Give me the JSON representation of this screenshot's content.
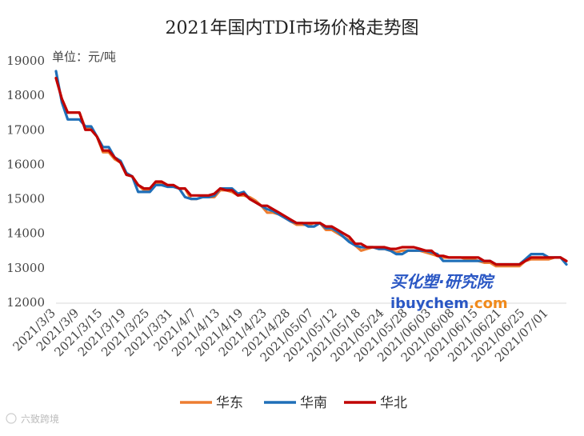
{
  "chart_data": {
    "type": "line",
    "title": "2021年国内TDI市场价格走势图",
    "unit_label": "单位：元/吨",
    "xlabel": "",
    "ylabel": "",
    "ylim": [
      12000,
      19000
    ],
    "yticks": [
      12000,
      13000,
      14000,
      15000,
      16000,
      17000,
      18000,
      19000
    ],
    "grid": false,
    "legend_position": "bottom-center",
    "x_tick_labels": [
      "2021/3/3",
      "2021/3/9",
      "2021/3/15",
      "2021/3/19",
      "2021/3/25",
      "2021/3/31",
      "2021/4/7",
      "2021/4/13",
      "2021/4/19",
      "2021/4/23",
      "2021/4/28",
      "2021/05/07",
      "2021/05/12",
      "2021/05/18",
      "2021/05/24",
      "2021/05/28",
      "2021/06/03",
      "2021/06/08",
      "2021/06/15",
      "2021/06/21",
      "2021/06/25",
      "2021/07/01"
    ],
    "tick_every": 4,
    "series": [
      {
        "name": "华东",
        "color": "#ed7d31",
        "values": [
          18500,
          17900,
          17500,
          17500,
          17500,
          17050,
          17050,
          16800,
          16350,
          16350,
          16150,
          16050,
          15700,
          15650,
          15400,
          15250,
          15250,
          15450,
          15450,
          15400,
          15350,
          15300,
          15300,
          15000,
          15000,
          15050,
          15050,
          15050,
          15250,
          15250,
          15200,
          15100,
          15100,
          15050,
          14950,
          14800,
          14600,
          14600,
          14550,
          14450,
          14350,
          14250,
          14250,
          14250,
          14300,
          14300,
          14100,
          14100,
          14000,
          13900,
          13800,
          13650,
          13500,
          13550,
          13600,
          13550,
          13550,
          13500,
          13450,
          13500,
          13500,
          13500,
          13500,
          13450,
          13400,
          13350,
          13300,
          13300,
          13300,
          13300,
          13250,
          13250,
          13200,
          13150,
          13150,
          13050,
          13050,
          13050,
          13050,
          13050,
          13200,
          13250,
          13250,
          13250,
          13250,
          13300,
          13300,
          13200
        ]
      },
      {
        "name": "华南",
        "color": "#1f6fb8",
        "values": [
          18700,
          17800,
          17300,
          17300,
          17300,
          17100,
          17100,
          16800,
          16500,
          16500,
          16200,
          16100,
          15750,
          15650,
          15200,
          15200,
          15200,
          15400,
          15400,
          15350,
          15350,
          15300,
          15050,
          15000,
          15000,
          15050,
          15050,
          15100,
          15300,
          15300,
          15300,
          15150,
          15200,
          15000,
          14900,
          14800,
          14700,
          14650,
          14550,
          14450,
          14350,
          14300,
          14300,
          14200,
          14200,
          14300,
          14150,
          14150,
          14050,
          13900,
          13750,
          13650,
          13600,
          13600,
          13600,
          13550,
          13550,
          13500,
          13400,
          13400,
          13500,
          13500,
          13500,
          13500,
          13450,
          13400,
          13200,
          13200,
          13200,
          13200,
          13200,
          13200,
          13200,
          13200,
          13200,
          13100,
          13100,
          13100,
          13100,
          13100,
          13250,
          13400,
          13400,
          13400,
          13300,
          13300,
          13300,
          13100
        ]
      },
      {
        "name": "华北",
        "color": "#c00000",
        "values": [
          18500,
          17900,
          17500,
          17500,
          17500,
          17000,
          17000,
          16800,
          16400,
          16400,
          16200,
          16050,
          15700,
          15650,
          15400,
          15300,
          15300,
          15500,
          15500,
          15400,
          15400,
          15300,
          15300,
          15100,
          15100,
          15100,
          15100,
          15150,
          15300,
          15250,
          15250,
          15100,
          15150,
          15000,
          14900,
          14800,
          14800,
          14700,
          14600,
          14500,
          14400,
          14300,
          14300,
          14300,
          14300,
          14300,
          14200,
          14200,
          14100,
          14000,
          13900,
          13700,
          13700,
          13600,
          13600,
          13600,
          13600,
          13550,
          13550,
          13600,
          13600,
          13600,
          13550,
          13500,
          13500,
          13350,
          13350,
          13300,
          13300,
          13300,
          13300,
          13300,
          13300,
          13200,
          13200,
          13100,
          13100,
          13100,
          13100,
          13100,
          13200,
          13300,
          13300,
          13300,
          13300,
          13300,
          13300,
          13200
        ]
      }
    ]
  },
  "watermark": {
    "brand_cn": "买化塑·研究院",
    "brand_en_prefix": "ibuychem",
    "brand_en_suffix": ".com"
  },
  "source_mark": {
    "text": "六致跨境"
  }
}
